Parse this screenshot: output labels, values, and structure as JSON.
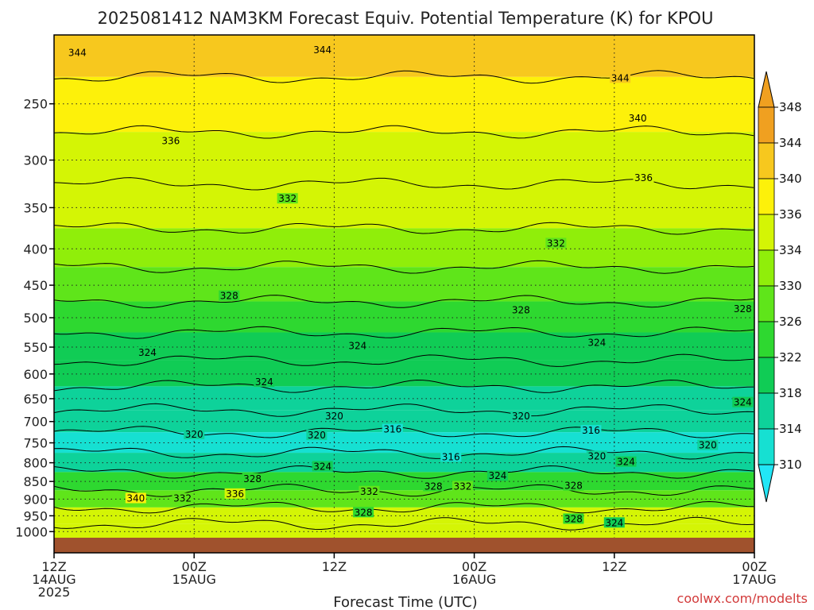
{
  "chart_data": {
    "type": "heatmap",
    "title": "2025081412 NAM3KM Forecast Equiv. Potential Temperature (K) for KPOU",
    "xlabel": "Forecast Time (UTC)",
    "ylabel": "",
    "x_ticks": [
      {
        "h": 0,
        "line1": "12Z",
        "line2": "14AUG",
        "line3": "2025"
      },
      {
        "h": 12,
        "line1": "00Z",
        "line2": "15AUG",
        "line3": ""
      },
      {
        "h": 24,
        "line1": "12Z",
        "line2": "",
        "line3": ""
      },
      {
        "h": 36,
        "line1": "00Z",
        "line2": "16AUG",
        "line3": ""
      },
      {
        "h": 48,
        "line1": "12Z",
        "line2": "",
        "line3": ""
      },
      {
        "h": 60,
        "line1": "00Z",
        "line2": "17AUG",
        "line3": ""
      }
    ],
    "xlim_hours": [
      0,
      60
    ],
    "y_ticks": [
      250,
      300,
      350,
      400,
      450,
      500,
      550,
      600,
      650,
      700,
      750,
      800,
      850,
      900,
      950,
      1000
    ],
    "ylim_hpa": [
      1020,
      200
    ],
    "y_scale": "log-pressure",
    "grid": true,
    "colorbar": {
      "ticks": [
        348,
        344,
        340,
        336,
        334,
        330,
        326,
        322,
        318,
        314,
        310
      ],
      "colors": [
        "#f0a020",
        "#f7c81e",
        "#fdf10a",
        "#d4f505",
        "#90ee0a",
        "#5fe51a",
        "#2ed830",
        "#10cc55",
        "#0ed29a",
        "#16e0d2",
        "#22e6f6"
      ]
    },
    "field_layers": [
      {
        "p": 210,
        "theta": 346
      },
      {
        "p": 250,
        "theta": 343
      },
      {
        "p": 300,
        "theta": 339
      },
      {
        "p": 350,
        "theta": 336
      },
      {
        "p": 400,
        "theta": 334
      },
      {
        "p": 450,
        "theta": 331
      },
      {
        "p": 500,
        "theta": 328
      },
      {
        "p": 550,
        "theta": 325
      },
      {
        "p": 600,
        "theta": 323
      },
      {
        "p": 650,
        "theta": 321
      },
      {
        "p": 700,
        "theta": 319
      },
      {
        "p": 750,
        "theta": 316
      },
      {
        "p": 800,
        "theta": 321
      },
      {
        "p": 850,
        "theta": 326
      },
      {
        "p": 900,
        "theta": 331
      },
      {
        "p": 950,
        "theta": 336
      },
      {
        "p": 1000,
        "theta": 338
      }
    ],
    "contour_labels": [
      {
        "text": "344",
        "h": 2.0,
        "p": 212
      },
      {
        "text": "344",
        "h": 23.0,
        "p": 210
      },
      {
        "text": "344",
        "h": 48.5,
        "p": 230
      },
      {
        "text": "340",
        "h": 50.0,
        "p": 262
      },
      {
        "text": "336",
        "h": 10.0,
        "p": 282
      },
      {
        "text": "336",
        "h": 50.5,
        "p": 318
      },
      {
        "text": "332",
        "h": 20.0,
        "p": 340
      },
      {
        "text": "332",
        "h": 43.0,
        "p": 393
      },
      {
        "text": "328",
        "h": 15.0,
        "p": 466
      },
      {
        "text": "328",
        "h": 40.0,
        "p": 488
      },
      {
        "text": "328",
        "h": 59.0,
        "p": 486
      },
      {
        "text": "324",
        "h": 8.0,
        "p": 560
      },
      {
        "text": "324",
        "h": 26.0,
        "p": 548
      },
      {
        "text": "324",
        "h": 46.5,
        "p": 542
      },
      {
        "text": "324",
        "h": 18.0,
        "p": 616
      },
      {
        "text": "324",
        "h": 59.0,
        "p": 658
      },
      {
        "text": "320",
        "h": 12.0,
        "p": 730
      },
      {
        "text": "320",
        "h": 24.0,
        "p": 688
      },
      {
        "text": "320",
        "h": 22.5,
        "p": 732
      },
      {
        "text": "320",
        "h": 40.0,
        "p": 688
      },
      {
        "text": "320",
        "h": 56.0,
        "p": 756
      },
      {
        "text": "320",
        "h": 46.5,
        "p": 783
      },
      {
        "text": "316",
        "h": 29.0,
        "p": 718
      },
      {
        "text": "316",
        "h": 46.0,
        "p": 721
      },
      {
        "text": "316",
        "h": 34.0,
        "p": 785
      },
      {
        "text": "324",
        "h": 23.0,
        "p": 810
      },
      {
        "text": "324",
        "h": 38.0,
        "p": 835
      },
      {
        "text": "324",
        "h": 49.0,
        "p": 798
      },
      {
        "text": "328",
        "h": 17.0,
        "p": 843
      },
      {
        "text": "328",
        "h": 32.5,
        "p": 864
      },
      {
        "text": "328",
        "h": 44.5,
        "p": 862
      },
      {
        "text": "328",
        "h": 26.5,
        "p": 940
      },
      {
        "text": "328",
        "h": 44.5,
        "p": 960
      },
      {
        "text": "332",
        "h": 11.0,
        "p": 898
      },
      {
        "text": "332",
        "h": 35.0,
        "p": 864
      },
      {
        "text": "332",
        "h": 27.0,
        "p": 878
      },
      {
        "text": "336",
        "h": 15.5,
        "p": 885
      },
      {
        "text": "340",
        "h": 7.0,
        "p": 898
      },
      {
        "text": "324",
        "h": 48.0,
        "p": 972
      }
    ]
  },
  "credit": "coolwx.com/modelts"
}
